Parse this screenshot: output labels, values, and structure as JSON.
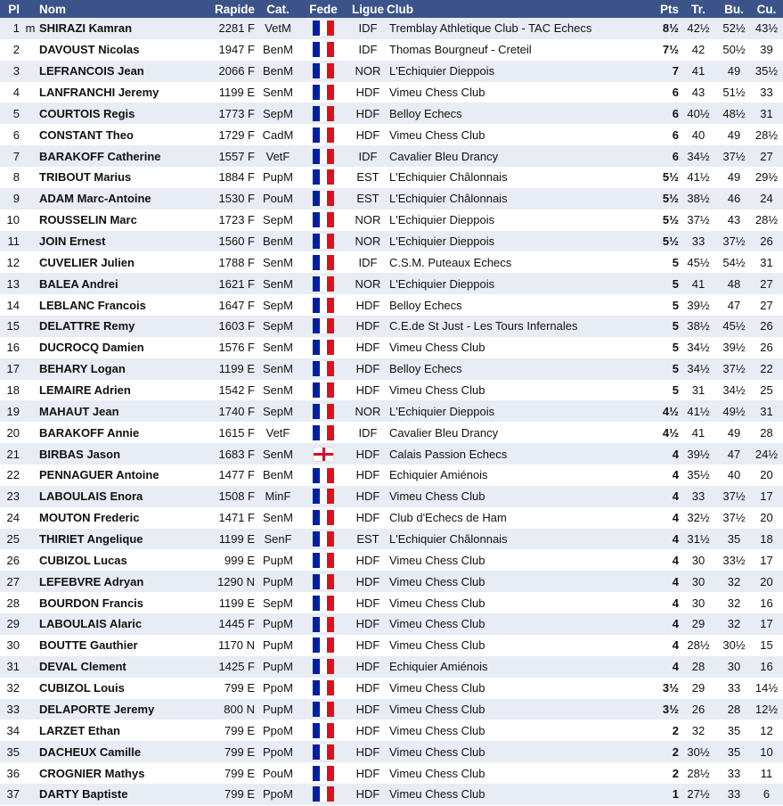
{
  "headers": {
    "pl": "Pl",
    "nom": "Nom",
    "rapide": "Rapide",
    "cat": "Cat.",
    "fede": "Fede",
    "ligue": "Ligue",
    "club": "Club",
    "pts": "Pts",
    "tr": "Tr.",
    "bu": "Bu.",
    "cu": "Cu."
  },
  "flag_icons": {
    "FRA": "france-flag",
    "ENG": "england-flag"
  },
  "rows": [
    {
      "pl": "1",
      "title": "m",
      "nom": "SHIRAZI Kamran",
      "rapide": "2281 F",
      "cat": "VetM",
      "fede": "FRA",
      "ligue": "IDF",
      "club": "Tremblay Athletique Club - TAC Echecs",
      "pts": "8½",
      "tr": "42½",
      "bu": "52½",
      "cu": "43½"
    },
    {
      "pl": "2",
      "title": "",
      "nom": "DAVOUST Nicolas",
      "rapide": "1947 F",
      "cat": "BenM",
      "fede": "FRA",
      "ligue": "IDF",
      "club": "Thomas Bourgneuf - Creteil",
      "pts": "7½",
      "tr": "42",
      "bu": "50½",
      "cu": "39"
    },
    {
      "pl": "3",
      "title": "",
      "nom": "LEFRANCOIS Jean",
      "rapide": "2066 F",
      "cat": "BenM",
      "fede": "FRA",
      "ligue": "NOR",
      "club": "L'Echiquier Dieppois",
      "pts": "7",
      "tr": "41",
      "bu": "49",
      "cu": "35½"
    },
    {
      "pl": "4",
      "title": "",
      "nom": "LANFRANCHI Jeremy",
      "rapide": "1199 E",
      "cat": "SenM",
      "fede": "FRA",
      "ligue": "HDF",
      "club": "Vimeu Chess Club",
      "pts": "6",
      "tr": "43",
      "bu": "51½",
      "cu": "33"
    },
    {
      "pl": "5",
      "title": "",
      "nom": "COURTOIS Regis",
      "rapide": "1773 F",
      "cat": "SepM",
      "fede": "FRA",
      "ligue": "HDF",
      "club": "Belloy Echecs",
      "pts": "6",
      "tr": "40½",
      "bu": "48½",
      "cu": "31"
    },
    {
      "pl": "6",
      "title": "",
      "nom": "CONSTANT Theo",
      "rapide": "1729 F",
      "cat": "CadM",
      "fede": "FRA",
      "ligue": "HDF",
      "club": "Vimeu Chess Club",
      "pts": "6",
      "tr": "40",
      "bu": "49",
      "cu": "28½"
    },
    {
      "pl": "7",
      "title": "",
      "nom": "BARAKOFF Catherine",
      "rapide": "1557 F",
      "cat": "VetF",
      "fede": "FRA",
      "ligue": "IDF",
      "club": "Cavalier Bleu Drancy",
      "pts": "6",
      "tr": "34½",
      "bu": "37½",
      "cu": "27"
    },
    {
      "pl": "8",
      "title": "",
      "nom": "TRIBOUT Marius",
      "rapide": "1884 F",
      "cat": "PupM",
      "fede": "FRA",
      "ligue": "EST",
      "club": "L'Echiquier Châlonnais",
      "pts": "5½",
      "tr": "41½",
      "bu": "49",
      "cu": "29½"
    },
    {
      "pl": "9",
      "title": "",
      "nom": "ADAM Marc-Antoine",
      "rapide": "1530 F",
      "cat": "PouM",
      "fede": "FRA",
      "ligue": "EST",
      "club": "L'Echiquier Châlonnais",
      "pts": "5½",
      "tr": "38½",
      "bu": "46",
      "cu": "24"
    },
    {
      "pl": "10",
      "title": "",
      "nom": "ROUSSELIN Marc",
      "rapide": "1723 F",
      "cat": "SepM",
      "fede": "FRA",
      "ligue": "NOR",
      "club": "L'Echiquier Dieppois",
      "pts": "5½",
      "tr": "37½",
      "bu": "43",
      "cu": "28½"
    },
    {
      "pl": "11",
      "title": "",
      "nom": "JOIN Ernest",
      "rapide": "1560 F",
      "cat": "BenM",
      "fede": "FRA",
      "ligue": "NOR",
      "club": "L'Echiquier Dieppois",
      "pts": "5½",
      "tr": "33",
      "bu": "37½",
      "cu": "26"
    },
    {
      "pl": "12",
      "title": "",
      "nom": "CUVELIER Julien",
      "rapide": "1788 F",
      "cat": "SenM",
      "fede": "FRA",
      "ligue": "IDF",
      "club": "C.S.M. Puteaux Echecs",
      "pts": "5",
      "tr": "45½",
      "bu": "54½",
      "cu": "31"
    },
    {
      "pl": "13",
      "title": "",
      "nom": "BALEA Andrei",
      "rapide": "1621 F",
      "cat": "SenM",
      "fede": "FRA",
      "ligue": "NOR",
      "club": "L'Echiquier Dieppois",
      "pts": "5",
      "tr": "41",
      "bu": "48",
      "cu": "27"
    },
    {
      "pl": "14",
      "title": "",
      "nom": "LEBLANC Francois",
      "rapide": "1647 F",
      "cat": "SepM",
      "fede": "FRA",
      "ligue": "HDF",
      "club": "Belloy Echecs",
      "pts": "5",
      "tr": "39½",
      "bu": "47",
      "cu": "27"
    },
    {
      "pl": "15",
      "title": "",
      "nom": "DELATTRE Remy",
      "rapide": "1603 F",
      "cat": "SepM",
      "fede": "FRA",
      "ligue": "HDF",
      "club": "C.E.de St Just - Les Tours Infernales",
      "pts": "5",
      "tr": "38½",
      "bu": "45½",
      "cu": "26"
    },
    {
      "pl": "16",
      "title": "",
      "nom": "DUCROCQ Damien",
      "rapide": "1576 F",
      "cat": "SenM",
      "fede": "FRA",
      "ligue": "HDF",
      "club": "Vimeu Chess Club",
      "pts": "5",
      "tr": "34½",
      "bu": "39½",
      "cu": "26"
    },
    {
      "pl": "17",
      "title": "",
      "nom": "BEHARY Logan",
      "rapide": "1199 E",
      "cat": "SenM",
      "fede": "FRA",
      "ligue": "HDF",
      "club": "Belloy Echecs",
      "pts": "5",
      "tr": "34½",
      "bu": "37½",
      "cu": "22"
    },
    {
      "pl": "18",
      "title": "",
      "nom": "LEMAIRE Adrien",
      "rapide": "1542 F",
      "cat": "SenM",
      "fede": "FRA",
      "ligue": "HDF",
      "club": "Vimeu Chess Club",
      "pts": "5",
      "tr": "31",
      "bu": "34½",
      "cu": "25"
    },
    {
      "pl": "19",
      "title": "",
      "nom": "MAHAUT Jean",
      "rapide": "1740 F",
      "cat": "SepM",
      "fede": "FRA",
      "ligue": "NOR",
      "club": "L'Echiquier Dieppois",
      "pts": "4½",
      "tr": "41½",
      "bu": "49½",
      "cu": "31"
    },
    {
      "pl": "20",
      "title": "",
      "nom": "BARAKOFF Annie",
      "rapide": "1615 F",
      "cat": "VetF",
      "fede": "FRA",
      "ligue": "IDF",
      "club": "Cavalier Bleu Drancy",
      "pts": "4½",
      "tr": "41",
      "bu": "49",
      "cu": "28"
    },
    {
      "pl": "21",
      "title": "",
      "nom": "BIRBAS Jason",
      "rapide": "1683 F",
      "cat": "SenM",
      "fede": "ENG",
      "ligue": "HDF",
      "club": "Calais Passion Echecs",
      "pts": "4",
      "tr": "39½",
      "bu": "47",
      "cu": "24½"
    },
    {
      "pl": "22",
      "title": "",
      "nom": "PENNAGUER Antoine",
      "rapide": "1477 F",
      "cat": "BenM",
      "fede": "FRA",
      "ligue": "HDF",
      "club": "Echiquier Amiénois",
      "pts": "4",
      "tr": "35½",
      "bu": "40",
      "cu": "20"
    },
    {
      "pl": "23",
      "title": "",
      "nom": "LABOULAIS Enora",
      "rapide": "1508 F",
      "cat": "MinF",
      "fede": "FRA",
      "ligue": "HDF",
      "club": "Vimeu Chess Club",
      "pts": "4",
      "tr": "33",
      "bu": "37½",
      "cu": "17"
    },
    {
      "pl": "24",
      "title": "",
      "nom": "MOUTON Frederic",
      "rapide": "1471 F",
      "cat": "SenM",
      "fede": "FRA",
      "ligue": "HDF",
      "club": "Club d'Echecs de Ham",
      "pts": "4",
      "tr": "32½",
      "bu": "37½",
      "cu": "20"
    },
    {
      "pl": "25",
      "title": "",
      "nom": "THIRIET Angelique",
      "rapide": "1199 E",
      "cat": "SenF",
      "fede": "FRA",
      "ligue": "EST",
      "club": "L'Echiquier Châlonnais",
      "pts": "4",
      "tr": "31½",
      "bu": "35",
      "cu": "18"
    },
    {
      "pl": "26",
      "title": "",
      "nom": "CUBIZOL Lucas",
      "rapide": "999 E",
      "cat": "PupM",
      "fede": "FRA",
      "ligue": "HDF",
      "club": "Vimeu Chess Club",
      "pts": "4",
      "tr": "30",
      "bu": "33½",
      "cu": "17"
    },
    {
      "pl": "27",
      "title": "",
      "nom": "LEFEBVRE Adryan",
      "rapide": "1290 N",
      "cat": "PupM",
      "fede": "FRA",
      "ligue": "HDF",
      "club": "Vimeu Chess Club",
      "pts": "4",
      "tr": "30",
      "bu": "32",
      "cu": "20"
    },
    {
      "pl": "28",
      "title": "",
      "nom": "BOURDON Francis",
      "rapide": "1199 E",
      "cat": "SepM",
      "fede": "FRA",
      "ligue": "HDF",
      "club": "Vimeu Chess Club",
      "pts": "4",
      "tr": "30",
      "bu": "32",
      "cu": "16"
    },
    {
      "pl": "29",
      "title": "",
      "nom": "LABOULAIS Alaric",
      "rapide": "1445 F",
      "cat": "PupM",
      "fede": "FRA",
      "ligue": "HDF",
      "club": "Vimeu Chess Club",
      "pts": "4",
      "tr": "29",
      "bu": "32",
      "cu": "17"
    },
    {
      "pl": "30",
      "title": "",
      "nom": "BOUTTE Gauthier",
      "rapide": "1170 N",
      "cat": "PupM",
      "fede": "FRA",
      "ligue": "HDF",
      "club": "Vimeu Chess Club",
      "pts": "4",
      "tr": "28½",
      "bu": "30½",
      "cu": "15"
    },
    {
      "pl": "31",
      "title": "",
      "nom": "DEVAL Clement",
      "rapide": "1425 F",
      "cat": "PupM",
      "fede": "FRA",
      "ligue": "HDF",
      "club": "Echiquier Amiénois",
      "pts": "4",
      "tr": "28",
      "bu": "30",
      "cu": "16"
    },
    {
      "pl": "32",
      "title": "",
      "nom": "CUBIZOL Louis",
      "rapide": "799 E",
      "cat": "PpoM",
      "fede": "FRA",
      "ligue": "HDF",
      "club": "Vimeu Chess Club",
      "pts": "3½",
      "tr": "29",
      "bu": "33",
      "cu": "14½"
    },
    {
      "pl": "33",
      "title": "",
      "nom": "DELAPORTE Jeremy",
      "rapide": "800 N",
      "cat": "PupM",
      "fede": "FRA",
      "ligue": "HDF",
      "club": "Vimeu Chess Club",
      "pts": "3½",
      "tr": "26",
      "bu": "28",
      "cu": "12½"
    },
    {
      "pl": "34",
      "title": "",
      "nom": "LARZET Ethan",
      "rapide": "799 E",
      "cat": "PpoM",
      "fede": "FRA",
      "ligue": "HDF",
      "club": "Vimeu Chess Club",
      "pts": "2",
      "tr": "32",
      "bu": "35",
      "cu": "12"
    },
    {
      "pl": "35",
      "title": "",
      "nom": "DACHEUX Camille",
      "rapide": "799 E",
      "cat": "PpoM",
      "fede": "FRA",
      "ligue": "HDF",
      "club": "Vimeu Chess Club",
      "pts": "2",
      "tr": "30½",
      "bu": "35",
      "cu": "10"
    },
    {
      "pl": "36",
      "title": "",
      "nom": "CROGNIER Mathys",
      "rapide": "799 E",
      "cat": "PouM",
      "fede": "FRA",
      "ligue": "HDF",
      "club": "Vimeu Chess Club",
      "pts": "2",
      "tr": "28½",
      "bu": "33",
      "cu": "11"
    },
    {
      "pl": "37",
      "title": "",
      "nom": "DARTY Baptiste",
      "rapide": "799 E",
      "cat": "PpoM",
      "fede": "FRA",
      "ligue": "HDF",
      "club": "Vimeu Chess Club",
      "pts": "1",
      "tr": "27½",
      "bu": "33",
      "cu": "6"
    }
  ]
}
